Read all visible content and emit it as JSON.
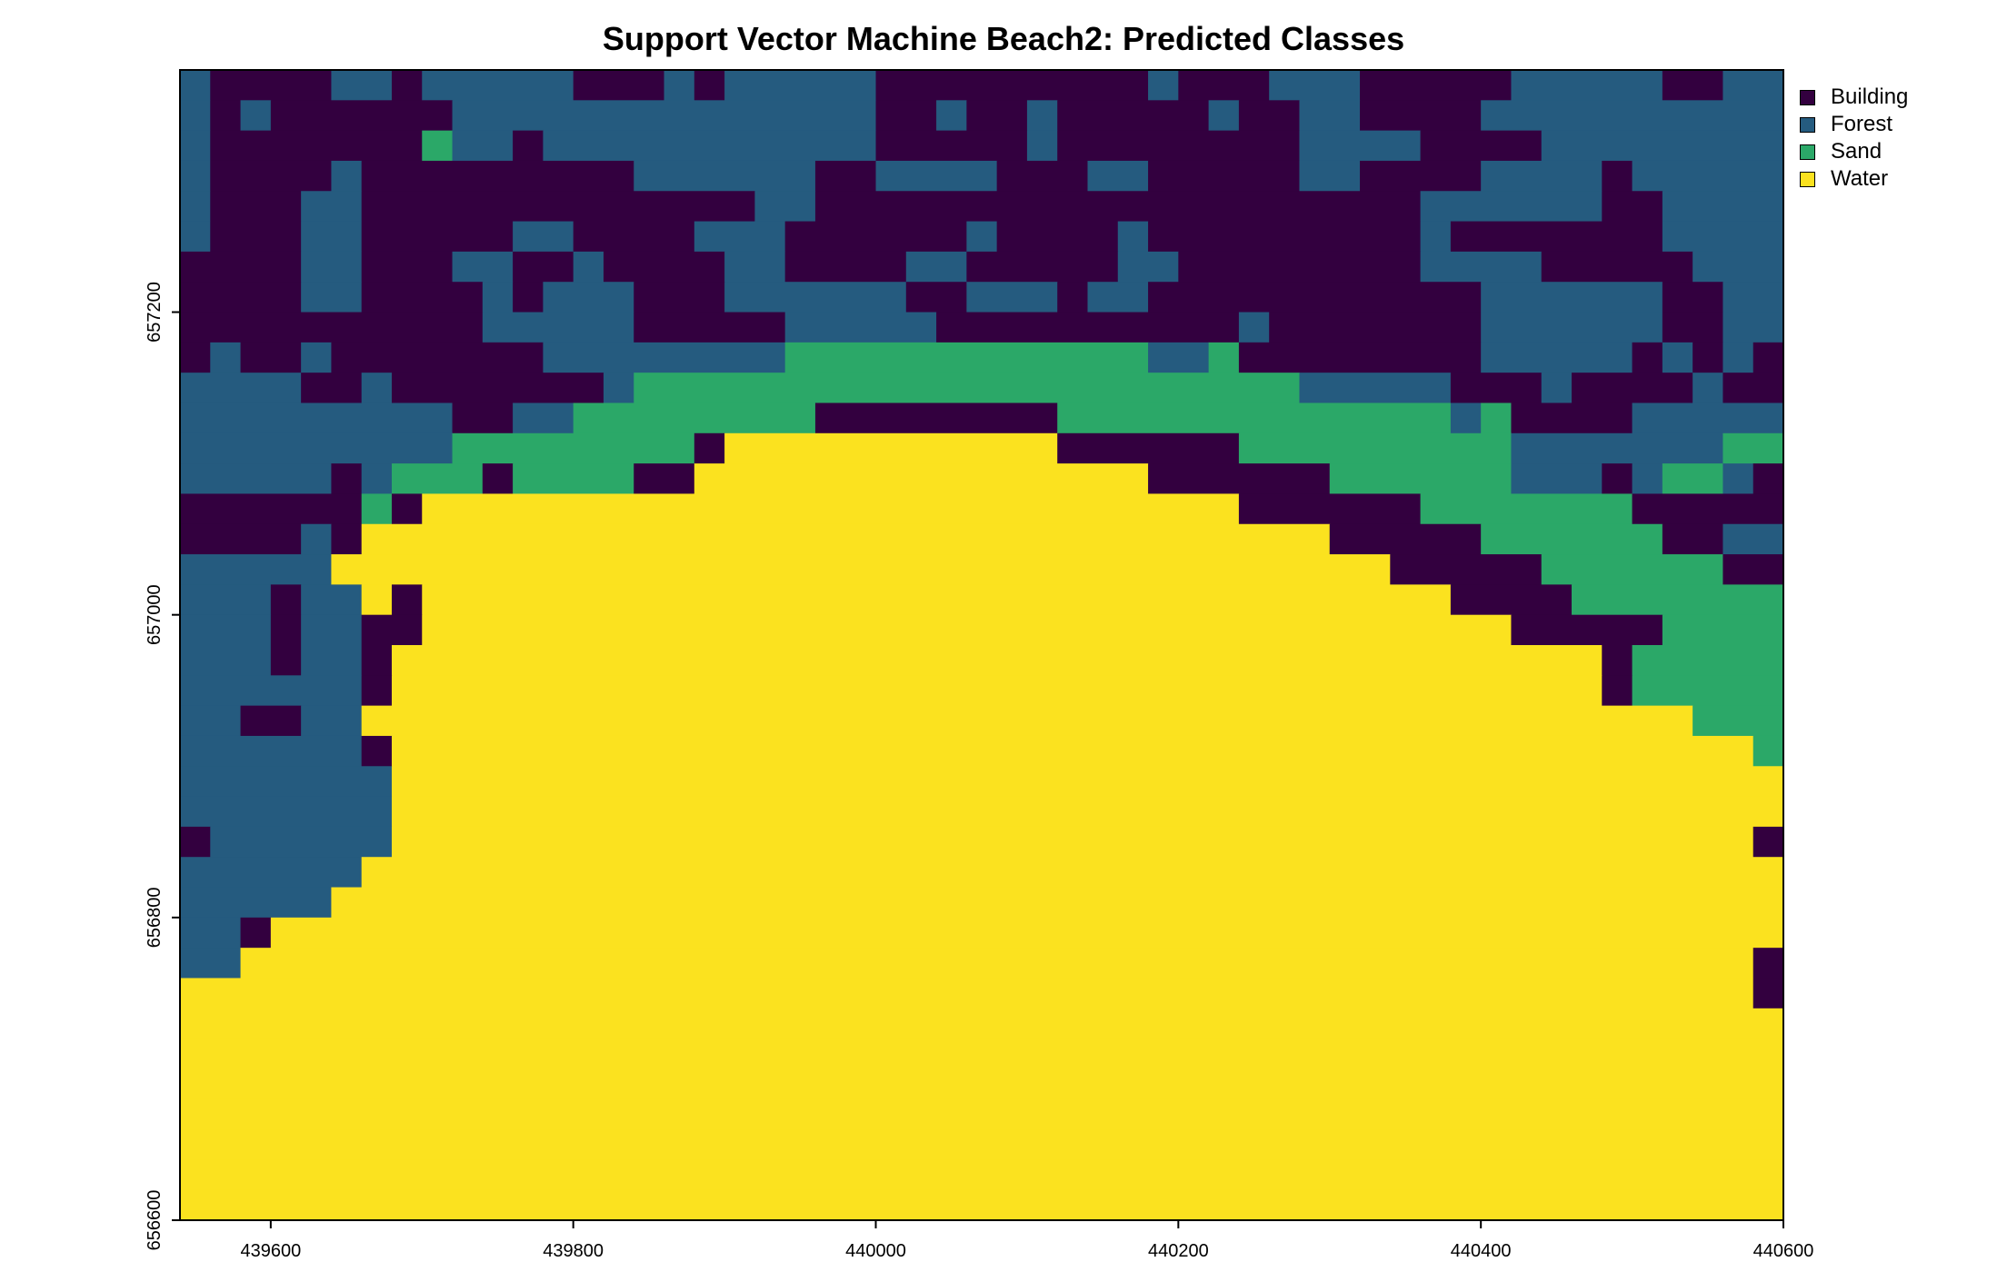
{
  "title": "Support Vector Machine Beach2: Predicted Classes",
  "legend": [
    {
      "label": "Building",
      "color": "#33003f"
    },
    {
      "label": "Forest",
      "color": "#255b7f"
    },
    {
      "label": "Sand",
      "color": "#2ba868"
    },
    {
      "label": "Water",
      "color": "#fbe21f"
    }
  ],
  "chart_data": {
    "type": "heatmap",
    "title": "Support Vector Machine Beach2: Predicted Classes",
    "xlim": [
      439540,
      440600
    ],
    "ylim": [
      656600,
      657360
    ],
    "x_ticks": [
      439600,
      439800,
      440000,
      440200,
      440400,
      440600
    ],
    "x_tick_labels": [
      "439600",
      "439800",
      "440000",
      "440200",
      "440400",
      "440600"
    ],
    "y_ticks": [
      656600,
      656800,
      657000,
      657200
    ],
    "y_tick_labels": [
      "656600",
      "656800",
      "657000",
      "657200"
    ],
    "classes": [
      "Building",
      "Forest",
      "Sand",
      "Water"
    ],
    "class_colors": [
      "#33003f",
      "#255b7f",
      "#2ba868",
      "#fbe21f"
    ],
    "legend_position": "right",
    "grid": false,
    "cell_size": 20,
    "grid_rows": [
      "FBBBBFFBFFFFFBBBFBFFFFFBBBBBBBBBFBBBFFFBBBBBFFFFFBBFFFFFFFBF",
      "FBFBBBBBBFFFFFFFFFFFFFFBBFBBFBBBBBFBBFFBBBBFFFFFFFFFFFFBFFBF",
      "FBBBBBBBSFFBFFFFFFFFFFFBBBBBFBBBBBBBBFFFFBBBBFFFFFFFFFFFFFFF",
      "FBBBBFBBBBBBBBBFFFFFFBBFFFFBBBFFBBBBBFFBBBBFFFFBFFFFFFFFFFBBF",
      "FBBBFFBBBBBBBBBBBBBFFBBBBBBBBBBBBBBBBBBBBFFFFFFBBFFFFFFFFFBSF",
      "FBBBFFBBBBBFFBBBBFFFBBBBBBFBBBBFBBBBBBBBBFBBBBBBBFFFFFFFFFBBF",
      "BBBBFFBBBFFBBFBBBBFFBBBBFFBBBBBFFBBBBBBBBFFFFBBBBBFFFFFFFFFFBF",
      "BBBBFFBBBBFBFFFBBBFFFFFFBBFFFBFFBBBBBBBBBBBFFFFFFBBFFFFFFFFFBFF",
      "BBBBBBBBBBFFFFFBBBBBFFFFFBBBBBBBBBBFBBBBBBBFFFFFFBBFFFFFFBFFFFBF",
      "BFBBFBBBBBBBFFFFFFFFSSSSSSSSSSSSFFSBBBBBBBBFFFFFBFBFBFFFBFFFFFBF",
      "FFFFBBFBBBBBBBFSSSSSSSSSSSSSSSSSSSSSSFFFFFBBBFBBBBFBBBBBFFFFFBBF",
      "FFFFFFFFFBBFFSSSSSSSSBBBBBBBBSSSSSSSSSSSSSFSBBBBFFFFFFFFFFFFFFFF",
      "FFFFFFFFFSSSSSSSSBWWWWWWWWWWWBBBBBBSSSSSSSSSFFFFFFFSSSFFFFFFFFF",
      "FFFFFBFSSSBSSSSBBWWWWWWWWWWWWWWWBBBBBBSSSSSSFFFBFSSFBBFFFFBFFFF",
      "BBBBBBSBWWWWWWWWWWWWWWWWWWWWWWWWWWWBBBBBBSSSSSSSBBBBBBFFFFFFFFF",
      "BBBBFBWWWWWWWWWWWWWWWWWWWWWWWWWWWWWWWWBBBBBSSSSSSBBFFFBBBBBBBBB",
      "FFFFFWWWWWWWWWWWWWWWWWWWWWWWWWWWWWWWWWWWBBBBBSSSSSSBBBBFBBBBBBB",
      "FFFBFFWBWWWWWWWWWWWWWWWWWWWWWWWWWWWWWWWWWWBBBBSSSSSSSBFFFFBBBBBB",
      "FFFBFFBBWWWWWWWWWWWWWWWWWWWWWWWWWWWWWWWWWWWWBBBBBSSSSBBBBBBBBBBB",
      "FFFBFFBWWWWWWWWWWWWWWWWWWWWWWWWWWWWWWWWWWWWWWWWBSSSSSBBBBBBBBBB",
      "FFFFFFBWWWWWWWWWWWWWWWWWWWWWWWWWWWWWWWWWWWWWWWWBSSSSSSSBBBBBBBB",
      "FFBBFFWWWWWWWWWWWWWWWWWWWWWWWWWWWWWWWWWWWWWWWWWWWWSSSSSBFFFFBBB",
      "FFFFFFBWWWWWWWWWWWWWWWWWWWWWWWWWWWWWWWWWWWWWWWWWWWWWSSSFFFFBBBB",
      "FFFFFFFWWWWWWWWWWWWWWWWWWWWWWWWWWWWWWWWWWWWWWWWWWWWWWSSBWWWWWWW",
      "FFFFFFFWWWWWWWWWWWWWWWWWWWWWWWWWWWWWWWWWWWWWWWWWWWWWWSSWWWWWWWW",
      "BFFFFFFWWWWWWWWWWWWWWWWWWWWWWWWWWWWWWWWWWWWWWWWWWWWWBSWWWWWWWWW",
      "FFFFFFWWWWWWWWWWWWWWWWWWWWWWWWWWWWWWWWWWWWWWWWWWWWWWWWBWWWWWWWW",
      "FFFFFWWWWWWWWWWWWWWWWWWWWWWWWWWWWWWWWWWWWWWWWWWWWWWWWFFWWWWWWWW",
      "FFBWWWWWWWWWWWWWWWWWWWWWWWWWWWWWWWWWWWWWWWWWWWWWWWWWWFFWWWWWWWW",
      "FFWWWWWWWWWWWWWWWWWWWWWWWWWWWWWWWWWWWWWWWWWWWWWWWWWWBFFBWWWWWWW",
      "WWWWWWWWWWWWWWWWWWWWWWWWWWWWWWWWWWWWWWWWWWWWWWWWWWWWBBBBWWWWWWW",
      "WWWWWWWWWWWWWWWWWWWWWWWWWWWWWWWWWWWWWWWWWWWWWWWWWWWWWBWWWWWWWWW",
      "WWWWWWWWWWWWWWWWWWWWWWWWWWWWWWWWWWWWWWWWWWWWWWWWWWWWWWWWWWWWWWW",
      "WWWWWWWWWWWWWWWWWWWWWWWWWWWWWWWWWWWWWWWWWWWWWWWWWWWWWWWWWWWWWWW",
      "WWWWWWWWWWWWWWWWWWWWWWWWWWWWWWWWWWWWWWWWWWWWWWWWWWWWWWWWWWWWWWW",
      "WWWWWWWWWWWWWWWWWWWWWWWWWWWWWWWWWWWWWWWWWWWWWWWWWWWWWWWWWWWWWWW",
      "WWWWWWWWWWWWWWWWWWWWWWWWWWWWWWWWWWWWWWWWWWWWWWWWWWWWWWWWWWWWWWW",
      "WWWWWWWWWWWWWWWWWWWWWWWWWWWWWWWWWWWWWWWWWWWWWWWWWWWWWWWWWWWWWWW"
    ],
    "grid_code_key": {
      "B": "Building",
      "F": "Forest",
      "S": "Sand",
      "W": "Water"
    }
  }
}
